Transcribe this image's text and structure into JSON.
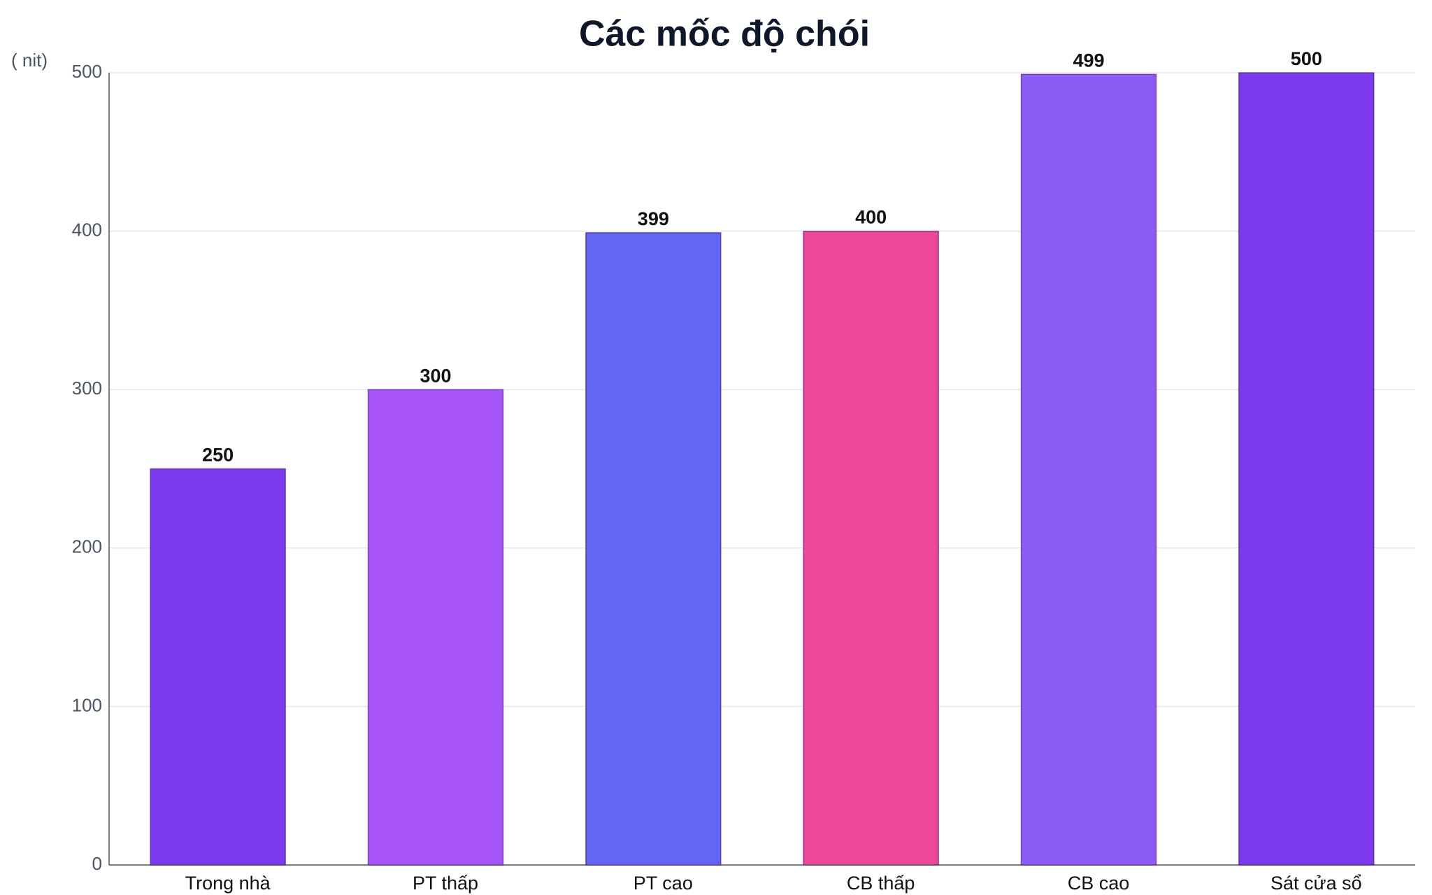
{
  "chart_data": {
    "type": "bar",
    "title": "Các mốc độ chói",
    "y_label": "( nit)",
    "categories": [
      "Trong nhà",
      "PT thấp",
      "PT cao",
      "CB thấp",
      "CB cao",
      "Sát cửa sổ"
    ],
    "values": [
      250,
      300,
      399,
      400,
      499,
      500
    ],
    "colors": [
      "#7c3aed",
      "#a855f7",
      "#6366f1",
      "#ec4899",
      "#8b5cf6",
      "#7c3aed"
    ],
    "ylim": [
      0,
      500
    ],
    "yticks": [
      0,
      100,
      200,
      300,
      400,
      500
    ],
    "grid": true
  }
}
